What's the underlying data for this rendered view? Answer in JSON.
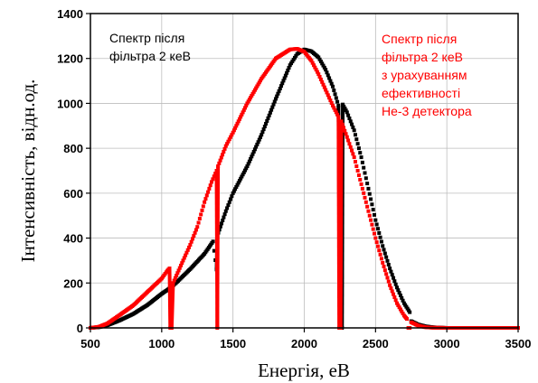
{
  "chart_data": {
    "type": "scatter",
    "xlabel": "Енергія, еВ",
    "ylabel": "Інтенсивність, відн.од.",
    "xlim": [
      500,
      3500
    ],
    "ylim": [
      0,
      1400
    ],
    "x_ticks": [
      "500",
      "1000",
      "1500",
      "2000",
      "2500",
      "3000",
      "3500"
    ],
    "y_ticks": [
      "0",
      "200",
      "400",
      "600",
      "800",
      "1000",
      "1200",
      "1400"
    ],
    "grid": true,
    "annotations": [
      {
        "lines": [
          "Спектр після",
          "фільтра 2 кеВ"
        ],
        "color": "#000000"
      },
      {
        "lines": [
          "Спектр після",
          "фільтра 2 кеВ",
          "з урахуванням",
          "ефективності",
          "He-3 детектора"
        ],
        "color": "#ff0000"
      }
    ],
    "series": [
      {
        "color": "#000000",
        "points": [
          [
            500,
            0
          ],
          [
            560,
            3
          ],
          [
            620,
            12
          ],
          [
            700,
            32
          ],
          [
            800,
            62
          ],
          [
            900,
            102
          ],
          [
            1000,
            152
          ],
          [
            1060,
            178
          ],
          [
            1100,
            200
          ],
          [
            1200,
            262
          ],
          [
            1300,
            330
          ],
          [
            1360,
            385
          ],
          [
            1385,
            260
          ],
          [
            1390,
            410
          ],
          [
            1450,
            520
          ],
          [
            1500,
            600
          ],
          [
            1600,
            720
          ],
          [
            1700,
            860
          ],
          [
            1800,
            1020
          ],
          [
            1900,
            1170
          ],
          [
            1950,
            1220
          ],
          [
            2000,
            1240
          ],
          [
            2050,
            1232
          ],
          [
            2100,
            1205
          ],
          [
            2150,
            1150
          ],
          [
            2200,
            1075
          ],
          [
            2240,
            990
          ],
          [
            2250,
            0
          ],
          [
            2265,
            0
          ],
          [
            2270,
            995
          ],
          [
            2300,
            960
          ],
          [
            2350,
            880
          ],
          [
            2400,
            760
          ],
          [
            2450,
            620
          ],
          [
            2500,
            480
          ],
          [
            2550,
            365
          ],
          [
            2600,
            265
          ],
          [
            2650,
            180
          ],
          [
            2700,
            110
          ],
          [
            2740,
            70
          ],
          [
            2750,
            30
          ],
          [
            2800,
            15
          ],
          [
            2850,
            7
          ],
          [
            2900,
            3
          ],
          [
            2950,
            1
          ],
          [
            3000,
            0
          ],
          [
            3100,
            0
          ],
          [
            3200,
            0
          ],
          [
            3300,
            0
          ],
          [
            3400,
            0
          ],
          [
            3500,
            0
          ]
        ]
      },
      {
        "color": "#ff0000",
        "points": [
          [
            500,
            0
          ],
          [
            560,
            5
          ],
          [
            620,
            20
          ],
          [
            700,
            55
          ],
          [
            800,
            100
          ],
          [
            900,
            160
          ],
          [
            1000,
            220
          ],
          [
            1040,
            255
          ],
          [
            1055,
            265
          ],
          [
            1060,
            0
          ],
          [
            1070,
            0
          ],
          [
            1080,
            200
          ],
          [
            1150,
            300
          ],
          [
            1200,
            370
          ],
          [
            1250,
            450
          ],
          [
            1300,
            560
          ],
          [
            1350,
            650
          ],
          [
            1385,
            700
          ],
          [
            1390,
            0
          ],
          [
            1395,
            720
          ],
          [
            1450,
            810
          ],
          [
            1500,
            870
          ],
          [
            1600,
            1000
          ],
          [
            1700,
            1110
          ],
          [
            1800,
            1200
          ],
          [
            1900,
            1240
          ],
          [
            1950,
            1243
          ],
          [
            2000,
            1230
          ],
          [
            2050,
            1190
          ],
          [
            2100,
            1130
          ],
          [
            2150,
            1060
          ],
          [
            2200,
            990
          ],
          [
            2240,
            940
          ],
          [
            2245,
            0
          ],
          [
            2255,
            0
          ],
          [
            2260,
            920
          ],
          [
            2300,
            850
          ],
          [
            2350,
            760
          ],
          [
            2400,
            640
          ],
          [
            2450,
            520
          ],
          [
            2500,
            400
          ],
          [
            2550,
            290
          ],
          [
            2600,
            190
          ],
          [
            2650,
            110
          ],
          [
            2700,
            55
          ],
          [
            2720,
            40
          ],
          [
            2730,
            0
          ],
          [
            2740,
            0
          ],
          [
            2750,
            25
          ],
          [
            2800,
            10
          ],
          [
            2850,
            3
          ],
          [
            2900,
            1
          ],
          [
            3000,
            0
          ],
          [
            3100,
            0
          ],
          [
            3200,
            0
          ],
          [
            3300,
            0
          ],
          [
            3400,
            0
          ],
          [
            3500,
            0
          ]
        ]
      }
    ]
  }
}
